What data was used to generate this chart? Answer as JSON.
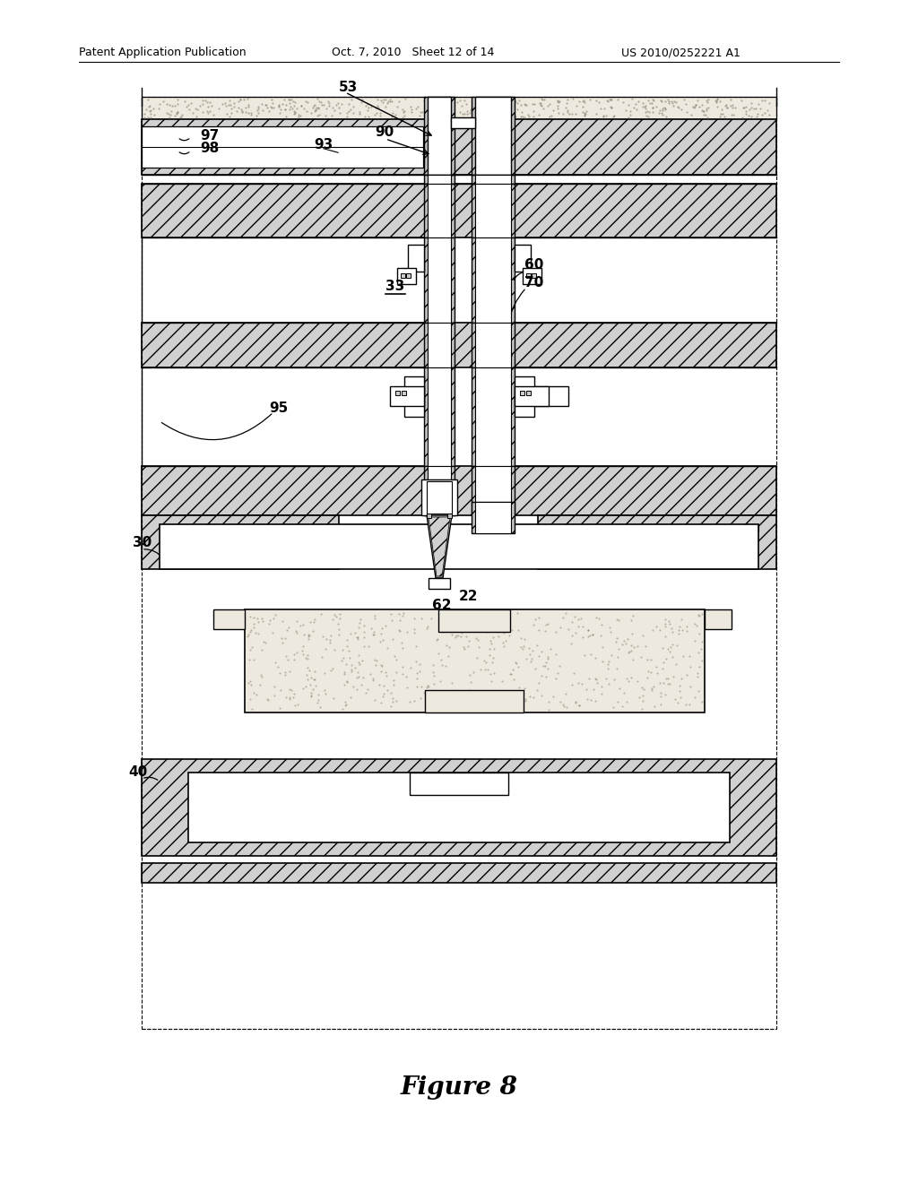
{
  "title": "Figure 8",
  "header_left": "Patent Application Publication",
  "header_mid": "Oct. 7, 2010   Sheet 12 of 14",
  "header_right": "US 2010/0252221 A1",
  "bg_color": "#ffffff",
  "line_color": "#000000",
  "hatch_fc": "#d8d8d8",
  "hatch_fc2": "#c0c0c0",
  "sand_fc": "#f0ece4"
}
